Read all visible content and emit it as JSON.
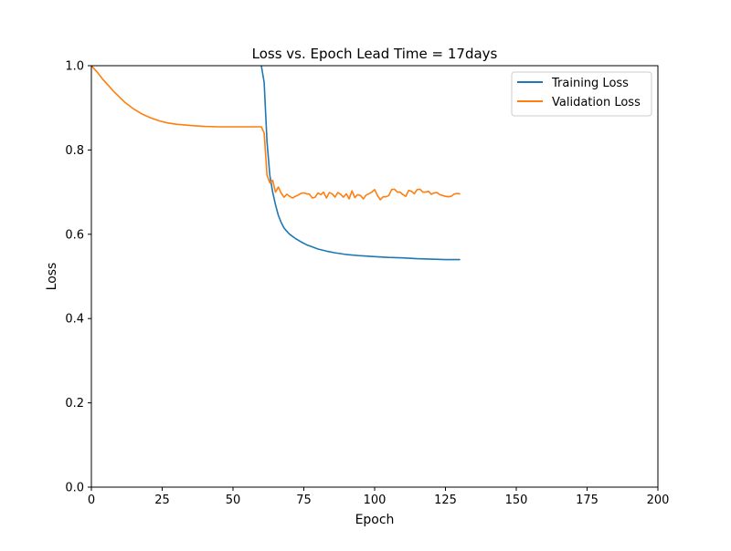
{
  "chart_data": {
    "type": "line",
    "title": "Loss vs. Epoch   Lead Time = 17days",
    "xlabel": "Epoch",
    "ylabel": "Loss",
    "xlim": [
      0,
      200
    ],
    "ylim": [
      0,
      1.0
    ],
    "xticks": [
      0,
      25,
      50,
      75,
      100,
      125,
      150,
      175,
      200
    ],
    "xtick_labels": [
      "0",
      "25",
      "50",
      "75",
      "100",
      "125",
      "150",
      "175",
      "200"
    ],
    "yticks": [
      0.0,
      0.2,
      0.4,
      0.6,
      0.8,
      1.0
    ],
    "ytick_labels": [
      "0.0",
      "0.2",
      "0.4",
      "0.6",
      "0.8",
      "1.0"
    ],
    "grid": false,
    "legend_position": "top-right",
    "series": [
      {
        "name": "Training Loss",
        "color": "#1f77b4",
        "x": [
          60,
          61,
          62,
          63,
          64,
          65,
          66,
          67,
          68,
          69,
          70,
          72,
          74,
          76,
          78,
          80,
          83,
          86,
          90,
          95,
          100,
          105,
          110,
          115,
          120,
          125,
          130
        ],
        "y": [
          1.0,
          0.96,
          0.82,
          0.74,
          0.7,
          0.67,
          0.645,
          0.628,
          0.615,
          0.607,
          0.6,
          0.59,
          0.582,
          0.575,
          0.57,
          0.565,
          0.56,
          0.556,
          0.552,
          0.549,
          0.547,
          0.545,
          0.544,
          0.542,
          0.541,
          0.54,
          0.54
        ]
      },
      {
        "name": "Validation Loss",
        "color": "#ff7f0e",
        "x": [
          0,
          2,
          4,
          6,
          8,
          10,
          12,
          15,
          18,
          21,
          24,
          27,
          30,
          35,
          40,
          45,
          50,
          55,
          59,
          60,
          61,
          62,
          63,
          64,
          65,
          66,
          67,
          68,
          69,
          70,
          71,
          72,
          73,
          74,
          75,
          76,
          77,
          78,
          79,
          80,
          81,
          82,
          83,
          84,
          85,
          86,
          87,
          88,
          89,
          90,
          91,
          92,
          93,
          94,
          95,
          96,
          97,
          98,
          99,
          100,
          101,
          102,
          103,
          104,
          105,
          106,
          107,
          108,
          109,
          110,
          111,
          112,
          113,
          114,
          115,
          116,
          117,
          118,
          119,
          120,
          121,
          122,
          123,
          124,
          125,
          126,
          127,
          128,
          129,
          130
        ],
        "y": [
          1.0,
          0.985,
          0.968,
          0.953,
          0.938,
          0.925,
          0.912,
          0.897,
          0.885,
          0.876,
          0.869,
          0.864,
          0.861,
          0.858,
          0.856,
          0.855,
          0.855,
          0.855,
          0.855,
          0.855,
          0.84,
          0.74,
          0.722,
          0.728,
          0.7,
          0.712,
          0.698,
          0.688,
          0.695,
          0.69,
          0.686,
          0.69,
          0.693,
          0.697,
          0.698,
          0.696,
          0.695,
          0.686,
          0.688,
          0.698,
          0.694,
          0.7,
          0.686,
          0.699,
          0.696,
          0.688,
          0.699,
          0.695,
          0.688,
          0.696,
          0.684,
          0.703,
          0.687,
          0.694,
          0.692,
          0.684,
          0.693,
          0.696,
          0.7,
          0.706,
          0.692,
          0.682,
          0.689,
          0.689,
          0.692,
          0.706,
          0.707,
          0.7,
          0.7,
          0.694,
          0.69,
          0.704,
          0.702,
          0.696,
          0.706,
          0.707,
          0.7,
          0.7,
          0.702,
          0.695,
          0.698,
          0.699,
          0.694,
          0.692,
          0.69,
          0.689,
          0.69,
          0.695,
          0.697,
          0.696
        ]
      }
    ]
  }
}
